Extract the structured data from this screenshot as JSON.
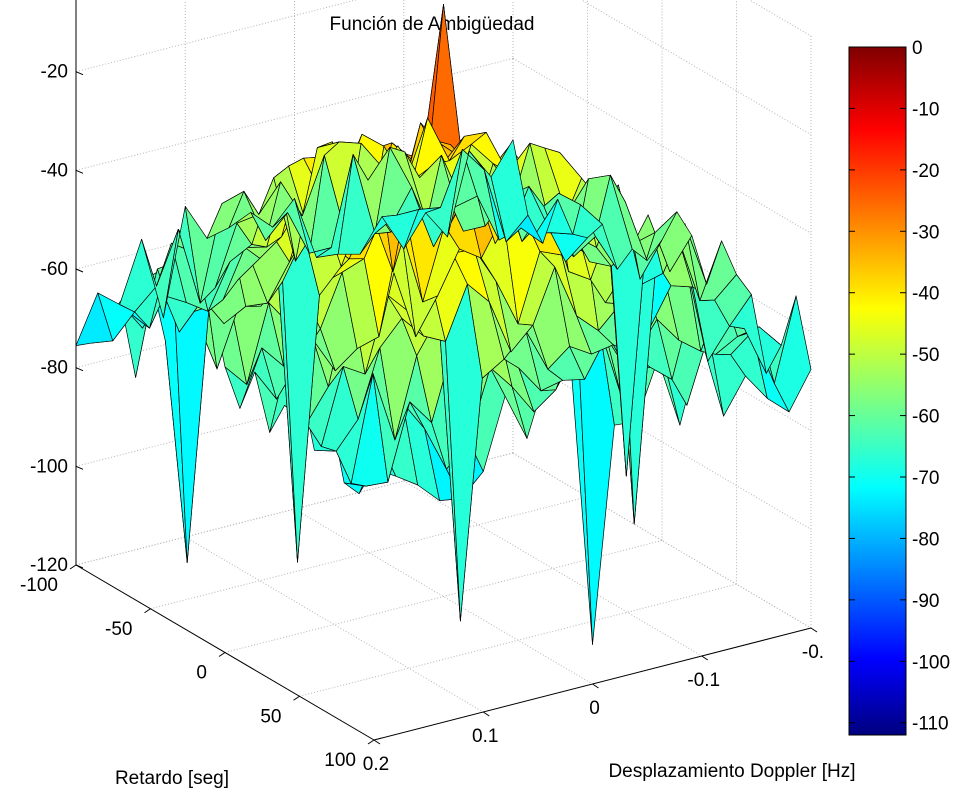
{
  "chart_data": {
    "type": "surface",
    "title": "Función de Ambigüedad",
    "xlabel": "Desplazamiento Doppler [Hz]",
    "ylabel": "Retardo [seg]",
    "zlabel": "",
    "x_ticks": [
      "0.2",
      "0.1",
      "0",
      "-0.1",
      "-0."
    ],
    "y_ticks": [
      "-100",
      "-50",
      "0",
      "50",
      "100"
    ],
    "z_ticks": [
      "0",
      "-20",
      "-40",
      "-60",
      "-80",
      "-100",
      "-120"
    ],
    "xlim": [
      -0.2,
      0.2
    ],
    "ylim": [
      -100,
      100
    ],
    "zlim": [
      -120,
      0
    ],
    "grid": true,
    "colormap": "jet",
    "colorbar": {
      "ticks": [
        "0",
        "-10",
        "-20",
        "-30",
        "-40",
        "-50",
        "-60",
        "-70",
        "-80",
        "-90",
        "-100",
        "-110"
      ],
      "clim": [
        -112,
        0
      ]
    },
    "surface": {
      "grid_size": [
        21,
        21
      ],
      "peak": {
        "x": 0,
        "y": 0,
        "z": 0
      },
      "typical_range": [
        -65,
        -30
      ],
      "notable_minima": [
        {
          "x": 0.17,
          "y": -40,
          "z": -110
        },
        {
          "x": 0.12,
          "y": -10,
          "z": -108
        },
        {
          "x": 0.08,
          "y": 70,
          "z": -108
        },
        {
          "x": 0.0,
          "y": 100,
          "z": -112
        },
        {
          "x": -0.11,
          "y": 40,
          "z": -105
        },
        {
          "x": -0.14,
          "y": 20,
          "z": -100
        }
      ]
    }
  }
}
